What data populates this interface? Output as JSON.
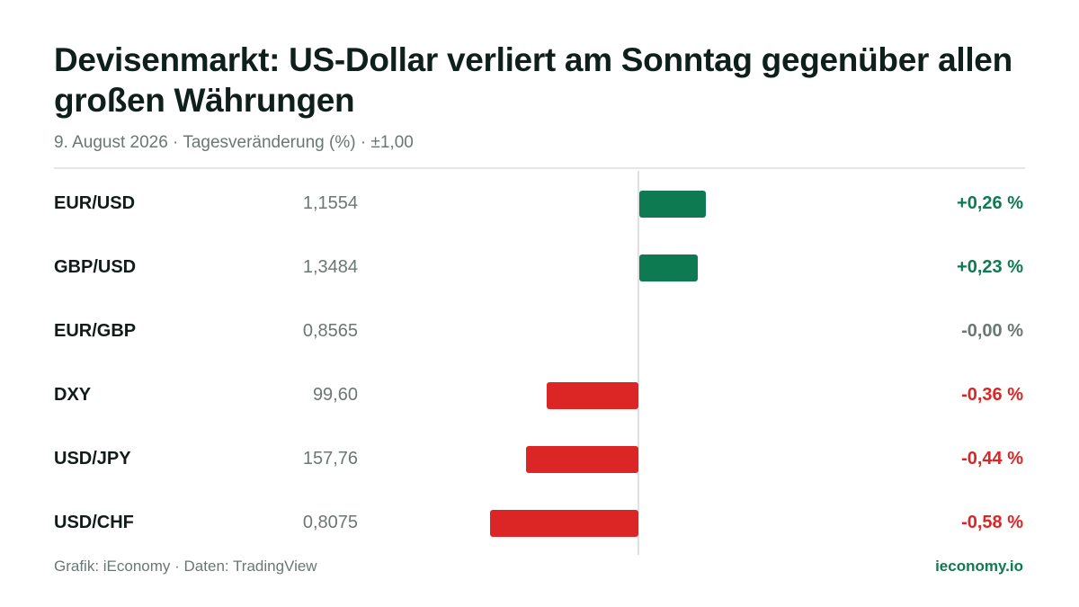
{
  "header": {
    "title": "Devisenmarkt: US-Dollar verliert am Sonntag gegenüber allen großen Währungen",
    "subtitle": "9. August 2026 · Tagesveränderung (%) · ±1,00"
  },
  "colors": {
    "positive": "#0e7a52",
    "negative": "#dc2626",
    "neutral": "#6b7774"
  },
  "chart_data": {
    "type": "bar",
    "orientation": "horizontal",
    "title": "Devisenmarkt: US-Dollar verliert am Sonntag gegenüber allen großen Währungen",
    "subtitle": "9. August 2026 · Tagesveränderung (%) · ±1,00",
    "xlim": [
      -1.0,
      1.0
    ],
    "grid": false,
    "categories": [
      "EUR/USD",
      "GBP/USD",
      "EUR/GBP",
      "DXY",
      "USD/JPY",
      "USD/CHF"
    ],
    "prices": [
      "1,1554",
      "1,3484",
      "0,8565",
      "99,60",
      "157,76",
      "0,8075"
    ],
    "values": [
      0.26,
      0.23,
      0.0,
      -0.36,
      -0.44,
      -0.58
    ],
    "value_labels": [
      "+0,26 %",
      "+0,23 %",
      "-0,00 %",
      "-0,36 %",
      "-0,44 %",
      "-0,58 %"
    ]
  },
  "footer": {
    "source": "Grafik: iEconomy · Daten: TradingView",
    "brand": "ieconomy.io"
  }
}
